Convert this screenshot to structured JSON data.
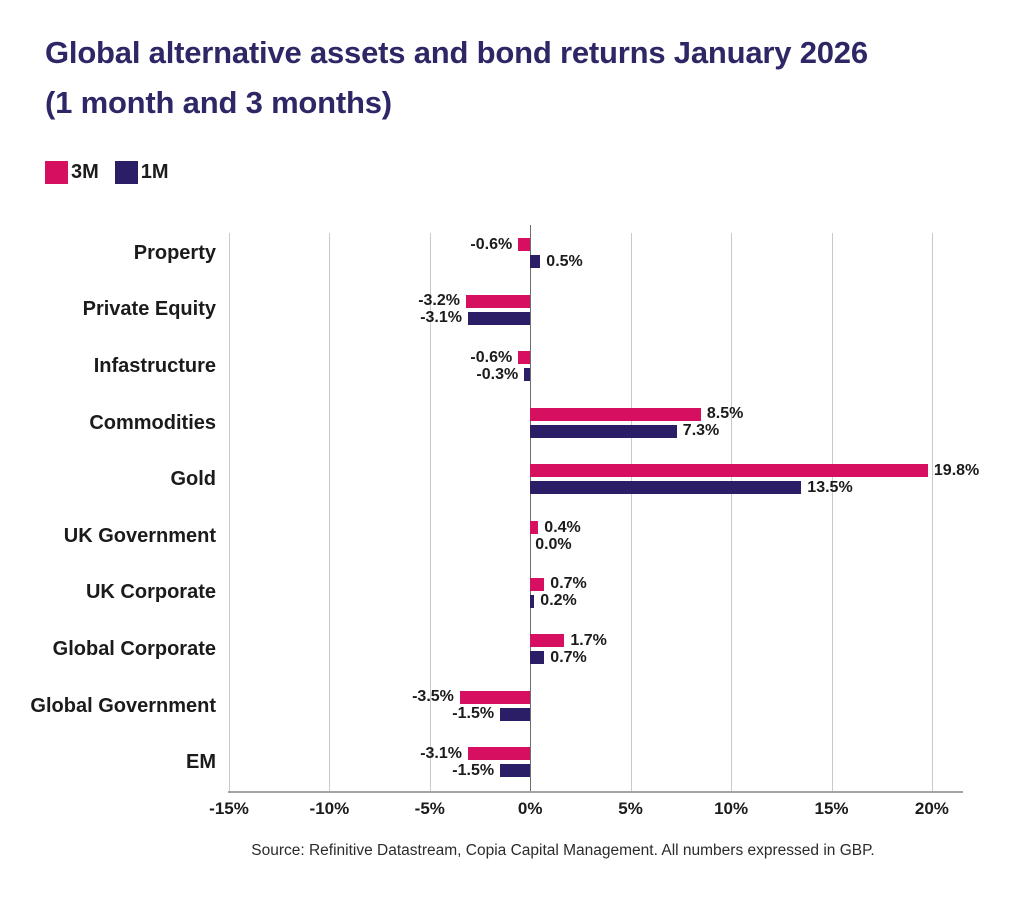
{
  "header": {
    "title_line1": "Global alternative assets and bond returns January 2026",
    "title_line2": "(1 month and 3 months)"
  },
  "colors": {
    "title": "#2d2766",
    "series_3m": "#d60f60",
    "series_1m": "#2b1e67",
    "text": "#1b1b1b",
    "gridline": "#c9c9c9",
    "zero_line": "#6e6e6e",
    "axis_line": "#a3a3a3"
  },
  "legend": {
    "items": [
      {
        "label": "3M",
        "color": "#d60f60"
      },
      {
        "label": "1M",
        "color": "#2b1e67"
      }
    ]
  },
  "chart_data": {
    "type": "bar",
    "orientation": "horizontal",
    "title": "Global alternative assets and bond returns January 2026 (1 month and 3 months)",
    "categories": [
      "Property",
      "Private Equity",
      "Infastructure",
      "Commodities",
      "Gold",
      "UK Government",
      "UK Corporate",
      "Global Corporate",
      "Global Government",
      "EM"
    ],
    "series": [
      {
        "name": "3M",
        "color": "#d60f60",
        "values": [
          -0.6,
          -3.2,
          -0.6,
          8.5,
          19.8,
          0.4,
          0.7,
          1.7,
          -3.5,
          -3.1
        ],
        "labels": [
          "-0.6%",
          "-3.2%",
          "-0.6%",
          "8.5%",
          "19.8%",
          "0.4%",
          "0.7%",
          "1.7%",
          "-3.5%",
          "-3.1%"
        ]
      },
      {
        "name": "1M",
        "color": "#2b1e67",
        "values": [
          0.5,
          -3.1,
          -0.3,
          7.3,
          13.5,
          0.0,
          0.2,
          0.7,
          -1.5,
          -1.5
        ],
        "labels": [
          "0.5%",
          "-3.1%",
          "-0.3%",
          "7.3%",
          "13.5%",
          "0.0%",
          "0.2%",
          "0.7%",
          "-1.5%",
          "-1.5%"
        ]
      }
    ],
    "x_ticks": [
      "-15%",
      "-10%",
      "-5%",
      "0%",
      "5%",
      "10%",
      "15%",
      "20%"
    ],
    "x_tick_values": [
      -15,
      -10,
      -5,
      0,
      5,
      10,
      15,
      20
    ],
    "xlim": [
      -15.05,
      21.55
    ],
    "grid": true,
    "legend_position": "top-left",
    "value_labels_shown": true
  },
  "footer": {
    "source": "Source: Refinitive Datastream, Copia Capital Management. All numbers expressed in GBP."
  }
}
